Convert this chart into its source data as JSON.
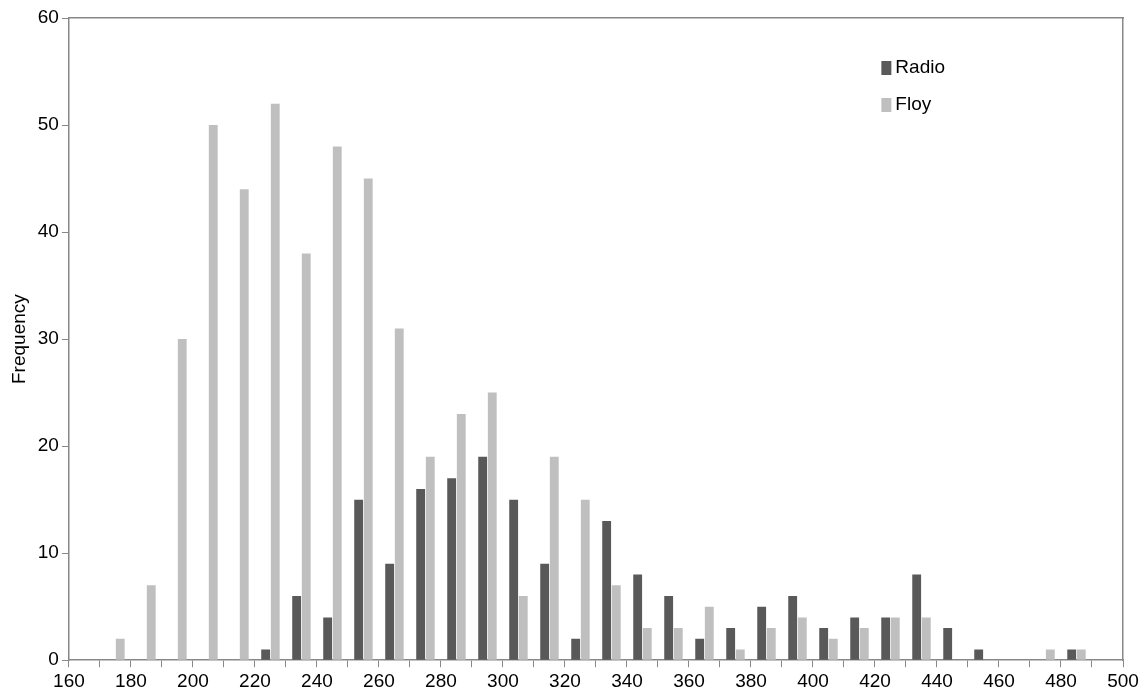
{
  "chart_data": {
    "type": "histogram",
    "ylabel": "Frequency",
    "bins": [
      160,
      170,
      180,
      190,
      200,
      210,
      220,
      230,
      240,
      250,
      260,
      270,
      280,
      290,
      300,
      310,
      320,
      330,
      340,
      350,
      360,
      370,
      380,
      390,
      400,
      410,
      420,
      430,
      440,
      450,
      460,
      470,
      480,
      490,
      500
    ],
    "series": [
      {
        "name": "Radio",
        "color": "#595959",
        "values": [
          0,
          0,
          0,
          0,
          0,
          0,
          1,
          6,
          4,
          15,
          9,
          16,
          17,
          19,
          15,
          9,
          2,
          13,
          8,
          6,
          2,
          3,
          5,
          6,
          3,
          4,
          4,
          8,
          3,
          1,
          0,
          0,
          1,
          0
        ]
      },
      {
        "name": "Floy",
        "color": "#bfbfbf",
        "values": [
          0,
          2,
          7,
          30,
          50,
          44,
          52,
          38,
          48,
          45,
          31,
          19,
          23,
          25,
          6,
          19,
          15,
          7,
          3,
          3,
          5,
          1,
          3,
          4,
          2,
          3,
          4,
          4,
          0,
          0,
          0,
          1,
          1,
          0
        ]
      }
    ],
    "xlim": [
      160,
      500
    ],
    "xticks": [
      160,
      {
        "value": 170,
        "label": null
      },
      180,
      {
        "value": 190,
        "label": null
      },
      200,
      {
        "value": 210,
        "label": null
      },
      220,
      {
        "value": 230,
        "label": null
      },
      240,
      {
        "value": 250,
        "label": null
      },
      260,
      {
        "value": 270,
        "label": null
      },
      280,
      {
        "value": 290,
        "label": null
      },
      300,
      {
        "value": 310,
        "label": null
      },
      320,
      {
        "value": 330,
        "label": null
      },
      340,
      {
        "value": 350,
        "label": null
      },
      360,
      {
        "value": 370,
        "label": null
      },
      380,
      {
        "value": 390,
        "label": null
      },
      400,
      {
        "value": 410,
        "label": null
      },
      420,
      {
        "value": 430,
        "label": null
      },
      440,
      {
        "value": 450,
        "label": null
      },
      460,
      {
        "value": 470,
        "label": null
      },
      480,
      {
        "value": 490,
        "label": null
      },
      500
    ],
    "ylim": [
      0,
      60
    ],
    "yticks": [
      0,
      10,
      20,
      30,
      40,
      50,
      60
    ],
    "legend": "top right"
  }
}
